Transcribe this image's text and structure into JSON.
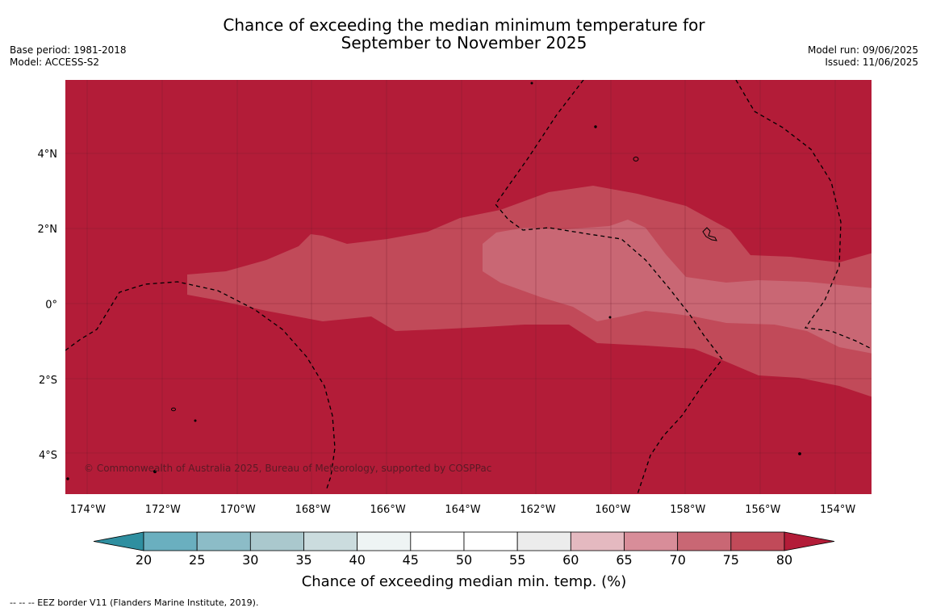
{
  "title_line1": "Chance of exceeding the median minimum temperature for",
  "title_line2": "September to November 2025",
  "meta_left": {
    "base_period": "Base period: 1981-2018",
    "model": "Model: ACCESS-S2"
  },
  "meta_right": {
    "model_run": "Model run: 09/06/2025",
    "issued": "Issued: 11/06/2025"
  },
  "map": {
    "lon_range": [
      -174.6,
      -153.1
    ],
    "lat_range": [
      -5.05,
      5.95
    ],
    "lon_ticks": [
      "174°W",
      "172°W",
      "170°W",
      "168°W",
      "166°W",
      "164°W",
      "162°W",
      "160°W",
      "158°W",
      "156°W",
      "154°W"
    ],
    "lon_tick_values": [
      -174,
      -172,
      -170,
      -168,
      -166,
      -164,
      -162,
      -160,
      -158,
      -156,
      -154
    ],
    "lat_ticks": [
      "4°N",
      "2°N",
      "0°",
      "2°S",
      "4°S"
    ],
    "lat_tick_values": [
      4,
      2,
      0,
      -2,
      -4
    ],
    "grid": true,
    "copyright": "© Commonwealth of Australia 2025, Bureau of Meteorology, supported by COSPPac"
  },
  "colorbar": {
    "label": "Chance of exceeding median min. temp. (%)",
    "ticks": [
      "20",
      "25",
      "30",
      "35",
      "40",
      "45",
      "50",
      "55",
      "60",
      "65",
      "70",
      "75",
      "80"
    ],
    "colors": [
      "#2f8fa0",
      "#6aafbf",
      "#8cbcc7",
      "#aac8cd",
      "#cbdcde",
      "#eef4f4",
      "#ffffff",
      "#ffffff",
      "#ececec",
      "#e4b9c0",
      "#d88d99",
      "#c96774",
      "#c14a59",
      "#b31c38"
    ],
    "extend": "both"
  },
  "legend_note": "-- -- -- EEZ border V11 (Flanders Marine Institute, 2019)."
}
